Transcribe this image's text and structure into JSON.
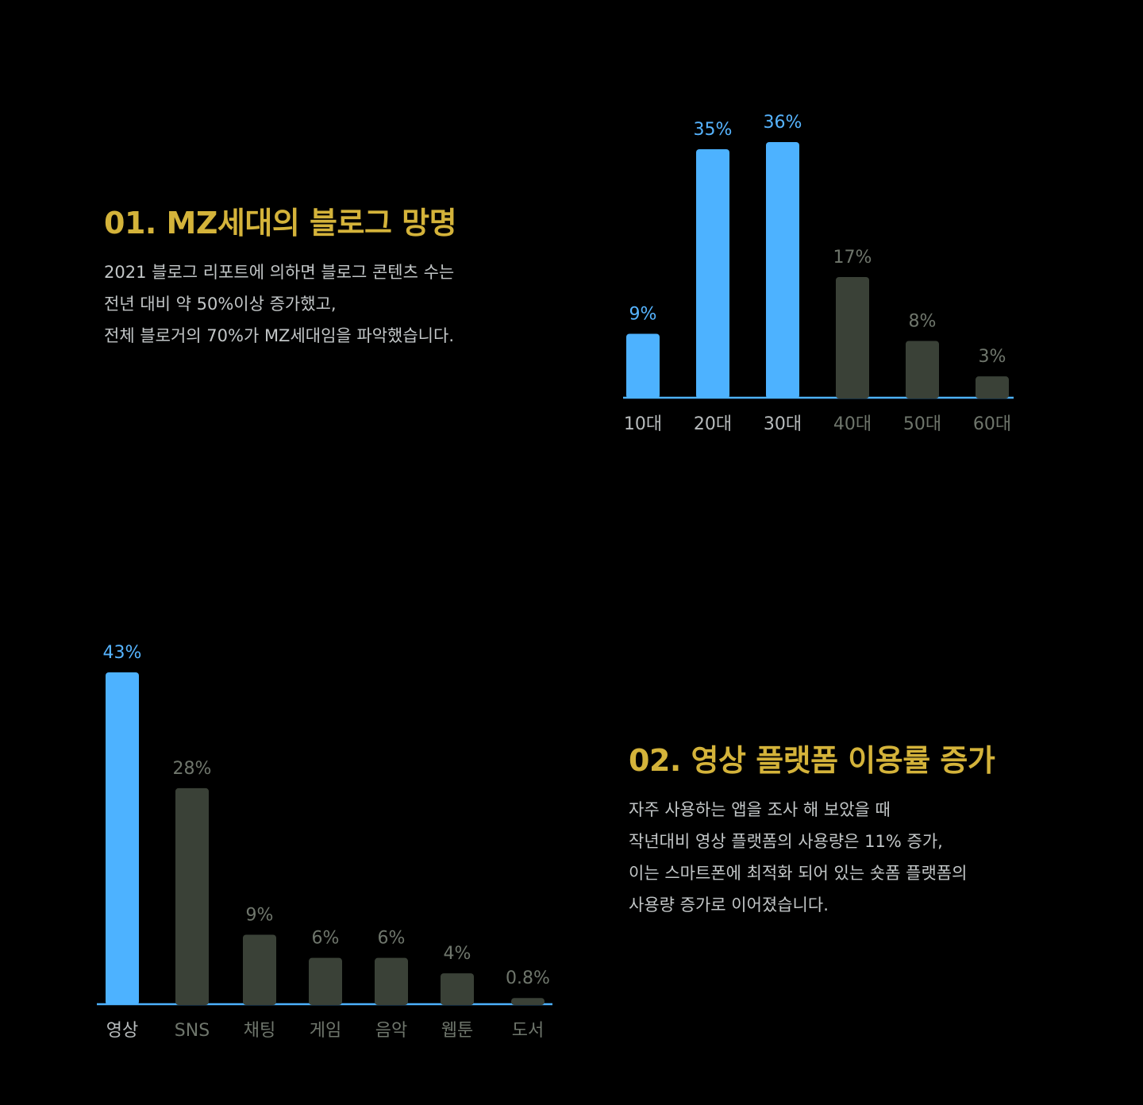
{
  "colors": {
    "background": "#000000",
    "heading": "#d4b33a",
    "body_text": "#c2c6c7",
    "highlight_bar": "#4db2ff",
    "muted_bar": "#3a4137",
    "highlight_label": "#56b4ff",
    "muted_label": "#6f766c",
    "axis_label": "#b8bcbd",
    "baseline": "#4db2ff"
  },
  "section1": {
    "title": "01. MZ세대의 블로그 망명",
    "lines": [
      "2021 블로그 리포트에 의하면 블로그 콘텐츠 수는",
      "전년 대비 약 50%이상 증가했고,",
      "전체 블로거의 70%가 MZ세대임을 파악했습니다."
    ]
  },
  "section2": {
    "title": "02. 영상 플랫폼 이용률 증가",
    "lines": [
      "자주 사용하는 앱을 조사 해 보았을 때",
      "작년대비 영상 플랫폼의 사용량은 11% 증가,",
      "이는 스마트폰에 최적화 되어 있는 숏폼 플랫폼의",
      "사용량 증가로 이어졌습니다."
    ]
  },
  "chart_data": [
    {
      "type": "bar",
      "categories": [
        "10대",
        "20대",
        "30대",
        "40대",
        "50대",
        "60대"
      ],
      "values": [
        9,
        35,
        36,
        17,
        8,
        3
      ],
      "value_labels": [
        "9%",
        "35%",
        "36%",
        "17%",
        "8%",
        "3%"
      ],
      "highlighted": [
        true,
        true,
        true,
        false,
        false,
        false
      ],
      "title": "",
      "xlabel": "",
      "ylabel": "",
      "grid": false
    },
    {
      "type": "bar",
      "categories": [
        "영상",
        "SNS",
        "채팅",
        "게임",
        "음악",
        "웹툰",
        "도서"
      ],
      "values": [
        43,
        28,
        9,
        6,
        6,
        4,
        0.8
      ],
      "value_labels": [
        "43%",
        "28%",
        "9%",
        "6%",
        "6%",
        "4%",
        "0.8%"
      ],
      "highlighted": [
        true,
        false,
        false,
        false,
        false,
        false,
        false
      ],
      "title": "",
      "xlabel": "",
      "ylabel": "",
      "grid": false
    }
  ]
}
